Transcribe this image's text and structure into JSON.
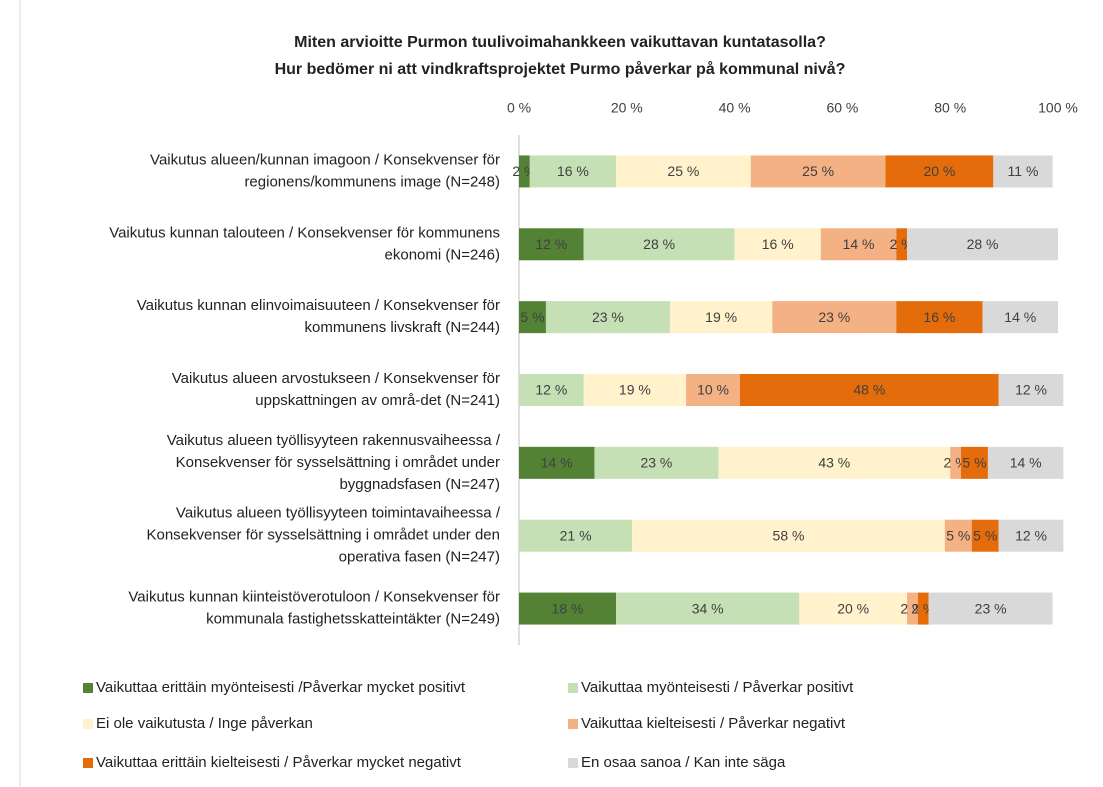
{
  "chart_data": {
    "type": "stacked-barh",
    "title": "Miten arvioitte Purmon tuulivoimahankkeen vaikuttavan kuntatasolla?",
    "subtitle": "Hur bedömer ni att vindkraftsprojektet Purmo påverkar på kommunal nivå?",
    "categories": [
      [
        "Vaikutus alueen/kunnan imagoon / Konsekvenser för",
        "regionens/kommunens image (N=248)"
      ],
      [
        "Vaikutus kunnan talouteen / Konsekvenser för kommunens",
        "ekonomi (N=246)"
      ],
      [
        "Vaikutus kunnan elinvoimaisuuteen / Konsekvenser för",
        "kommunens livskraft (N=244)"
      ],
      [
        "Vaikutus alueen arvostukseen / Konsekvenser för",
        "uppskattningen av områ-det (N=241)"
      ],
      [
        "Vaikutus alueen työllisyyteen rakennusvaiheessa /",
        "Konsekvenser för sysselsättning i området under",
        "byggnadsfasen (N=247)"
      ],
      [
        "Vaikutus alueen työllisyyteen toimintavaiheessa /",
        "Konsekvenser för sysselsättning i området under den",
        "operativa fasen (N=247)"
      ],
      [
        "Vaikutus kunnan kiinteistöverotuloon / Konsekvenser för",
        "kommunala fastighetsskatteintäkter (N=249)"
      ]
    ],
    "series": [
      {
        "name": "Vaikuttaa erittäin myönteisesti /Påverkar mycket positivt",
        "color": "#548235",
        "values": [
          2,
          12,
          5,
          null,
          14,
          null,
          18
        ],
        "value_labels": [
          "2 %",
          "12 %",
          "5 %",
          null,
          "14 %",
          null,
          "18 %"
        ]
      },
      {
        "name": "Vaikuttaa myönteisesti / Påverkar positivt",
        "color": "#c5e0b4",
        "values": [
          16,
          28,
          23,
          12,
          23,
          21,
          34
        ],
        "value_labels": [
          "16 %",
          "28 %",
          "23 %",
          "12 %",
          "23 %",
          "21 %",
          "34 %"
        ]
      },
      {
        "name": "Ei ole vaikutusta / Inge påverkan",
        "color": "#fff2cc",
        "values": [
          25,
          16,
          19,
          19,
          43,
          58,
          20
        ],
        "value_labels": [
          "25 %",
          "16 %",
          "19 %",
          "19 %",
          "43 %",
          "58 %",
          "20 %"
        ]
      },
      {
        "name": "Vaikuttaa kielteisesti / Påverkar negativt",
        "color": "#f4b183",
        "values": [
          25,
          14,
          23,
          10,
          2,
          5,
          2
        ],
        "value_labels": [
          "25 %",
          "14 %",
          "23 %",
          "10 %",
          "2 %",
          "5 %",
          "2 %"
        ]
      },
      {
        "name": "Vaikuttaa erittäin kielteisesti / Påverkar mycket negativt",
        "color": "#e46c0a",
        "values": [
          20,
          2,
          16,
          48,
          5,
          5,
          2
        ],
        "value_labels": [
          "20 %",
          "2 %",
          "16 %",
          "48 %",
          "5 %",
          "5 %",
          "2 %"
        ]
      },
      {
        "name": "En osaa sanoa / Kan inte säga",
        "color": "#d9d9d9",
        "values": [
          11,
          28,
          14,
          12,
          14,
          12,
          23
        ],
        "value_labels": [
          "11 %",
          "28 %",
          "14 %",
          "12 %",
          "14 %",
          "12 %",
          "23 %"
        ]
      }
    ],
    "xlim": [
      0,
      100
    ],
    "xticks": [
      {
        "value": 0,
        "label": "0 %"
      },
      {
        "value": 20,
        "label": "20 %"
      },
      {
        "value": 40,
        "label": "40 %"
      },
      {
        "value": 60,
        "label": "60 %"
      },
      {
        "value": 80,
        "label": "80 %"
      },
      {
        "value": 100,
        "label": "100 %"
      }
    ],
    "legend": "bottom"
  }
}
